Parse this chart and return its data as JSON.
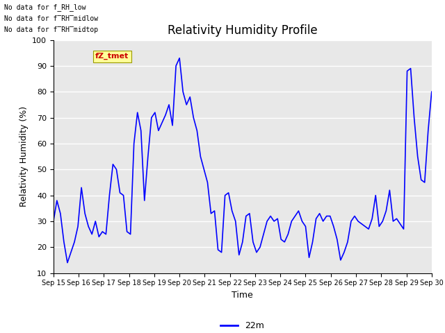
{
  "title": "Relativity Humidity Profile",
  "xlabel": "Time",
  "ylabel": "Relativity Humidity (%)",
  "ylim": [
    10,
    100
  ],
  "yticks": [
    10,
    20,
    30,
    40,
    50,
    60,
    70,
    80,
    90,
    100
  ],
  "line_color": "#0000ff",
  "line_label": "22m",
  "fig_bg_color": "#ffffff",
  "plot_bg_color": "#e8e8e8",
  "no_data_texts": [
    "No data for f_RH_low",
    "No data for f̅RH̅midlow",
    "No data for f̅RH̅midtop"
  ],
  "legend_label_color": "#cc0000",
  "legend_bg": "#ffff99",
  "x_tick_labels": [
    "Sep 15",
    "Sep 16",
    "Sep 17",
    "Sep 18",
    "Sep 19",
    "Sep 20",
    "Sep 21",
    "Sep 22",
    "Sep 23",
    "Sep 24",
    "Sep 25",
    "Sep 26",
    "Sep 27",
    "Sep 28",
    "Sep 29",
    "Sep 30"
  ],
  "humidity_values": [
    30,
    38,
    33,
    22,
    14,
    18,
    22,
    28,
    43,
    33,
    28,
    25,
    30,
    24,
    26,
    25,
    40,
    52,
    50,
    41,
    40,
    26,
    25,
    60,
    72,
    65,
    38,
    55,
    70,
    72,
    65,
    68,
    71,
    75,
    67,
    90,
    93,
    80,
    75,
    78,
    70,
    65,
    55,
    50,
    45,
    33,
    34,
    19,
    18,
    40,
    41,
    34,
    30,
    17,
    22,
    32,
    33,
    22,
    18,
    20,
    25,
    30,
    32,
    30,
    31,
    23,
    22,
    25,
    30,
    32,
    34,
    30,
    28,
    16,
    22,
    31,
    33,
    30,
    32,
    32,
    28,
    23,
    15,
    18,
    22,
    30,
    32,
    30,
    29,
    28,
    27,
    31,
    40,
    28,
    30,
    34,
    42,
    30,
    31,
    29,
    27,
    88,
    89,
    70,
    55,
    46,
    45,
    65,
    80
  ]
}
